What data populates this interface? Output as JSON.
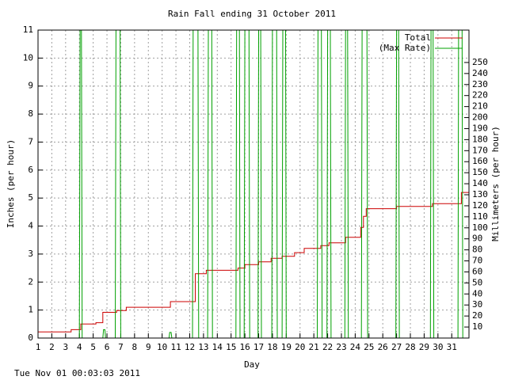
{
  "chart_data": {
    "type": "line",
    "title": "Rain Fall ending 31 October 2011",
    "x_label": "Day",
    "y_label": "Inches (per hour)",
    "y2_label": "Millimeters (per hour)",
    "timestamp": "Tue Nov 01 00:03:03 2011",
    "xlim": [
      1,
      32.25
    ],
    "xticks": [
      1,
      2,
      3,
      4,
      5,
      6,
      7,
      8,
      9,
      10,
      11,
      12,
      13,
      14,
      15,
      16,
      17,
      18,
      19,
      20,
      21,
      22,
      23,
      24,
      25,
      26,
      27,
      28,
      29,
      30,
      31
    ],
    "ylim": [
      0,
      11
    ],
    "yticks": [
      0,
      1,
      2,
      3,
      4,
      5,
      6,
      7,
      8,
      9,
      10,
      11
    ],
    "y2lim": [
      0,
      279.4
    ],
    "y2ticks": [
      10,
      20,
      30,
      40,
      50,
      60,
      70,
      80,
      90,
      100,
      110,
      120,
      130,
      140,
      150,
      160,
      170,
      180,
      190,
      200,
      210,
      220,
      230,
      240,
      250
    ],
    "grid": true,
    "legend": "top-right",
    "series": [
      {
        "name": "Total",
        "color": "#cc0000",
        "x": [
          1,
          3.4,
          3.4,
          4.1,
          4.1,
          5.2,
          5.2,
          5.7,
          5.7,
          6.7,
          6.7,
          7.4,
          7.4,
          10.6,
          10.6,
          12.4,
          12.4,
          13.2,
          13.2,
          15.5,
          15.5,
          16.0,
          16.0,
          17.0,
          17.0,
          17.9,
          17.9,
          18.7,
          18.7,
          19.6,
          19.6,
          20.3,
          20.3,
          21.5,
          21.5,
          22.1,
          22.1,
          23.3,
          23.3,
          24.4,
          24.4,
          24.6,
          24.6,
          24.8,
          24.8,
          27.0,
          27.0,
          29.6,
          29.6,
          31.7,
          31.7,
          32.25
        ],
        "values": [
          0.22,
          0.22,
          0.3,
          0.3,
          0.5,
          0.5,
          0.55,
          0.55,
          0.92,
          0.92,
          0.98,
          0.98,
          1.1,
          1.1,
          1.3,
          1.3,
          2.3,
          2.3,
          2.42,
          2.42,
          2.5,
          2.5,
          2.62,
          2.62,
          2.72,
          2.72,
          2.85,
          2.85,
          2.92,
          2.92,
          3.05,
          3.05,
          3.2,
          3.2,
          3.3,
          3.3,
          3.4,
          3.4,
          3.6,
          3.6,
          3.95,
          3.95,
          4.35,
          4.35,
          4.62,
          4.62,
          4.7,
          4.7,
          4.8,
          4.8,
          5.2,
          5.2
        ]
      },
      {
        "name": "(Max Rate)",
        "color": "#00a000",
        "x": [
          1,
          4.0,
          4.05,
          4.15,
          4.2,
          5.7,
          5.75,
          5.85,
          5.9,
          6.6,
          6.65,
          6.95,
          7.0,
          10.5,
          10.55,
          10.65,
          10.7,
          12.2,
          12.25,
          12.6,
          12.65,
          13.3,
          13.35,
          13.6,
          13.65,
          15.35,
          15.4,
          15.6,
          15.65,
          15.95,
          16.0,
          16.3,
          16.35,
          16.95,
          17.0,
          17.15,
          17.2,
          17.95,
          18.0,
          18.3,
          18.35,
          18.7,
          18.75,
          18.95,
          19.0,
          21.25,
          21.3,
          21.55,
          21.6,
          21.95,
          22.0,
          22.2,
          22.25,
          23.25,
          23.3,
          23.45,
          23.5,
          24.45,
          24.5,
          24.85,
          24.9,
          26.95,
          27.0,
          27.15,
          27.2,
          29.45,
          29.5,
          29.65,
          29.7,
          31.45,
          31.5,
          31.75,
          31.8
        ],
        "values": [
          0,
          0,
          11,
          11,
          0,
          0,
          0.3,
          0.3,
          0,
          0,
          11,
          11,
          0,
          0,
          0.2,
          0.2,
          0,
          0,
          11,
          11,
          0,
          0,
          11,
          11,
          0,
          0,
          11,
          11,
          0,
          0,
          11,
          11,
          0,
          0,
          11,
          11,
          0,
          0,
          11,
          11,
          0,
          0,
          11,
          11,
          0,
          0,
          11,
          11,
          0,
          0,
          11,
          11,
          0,
          0,
          11,
          11,
          0,
          0,
          11,
          11,
          0,
          0,
          11,
          11,
          0,
          0,
          11,
          11,
          0,
          0,
          11,
          11,
          0
        ]
      }
    ]
  }
}
